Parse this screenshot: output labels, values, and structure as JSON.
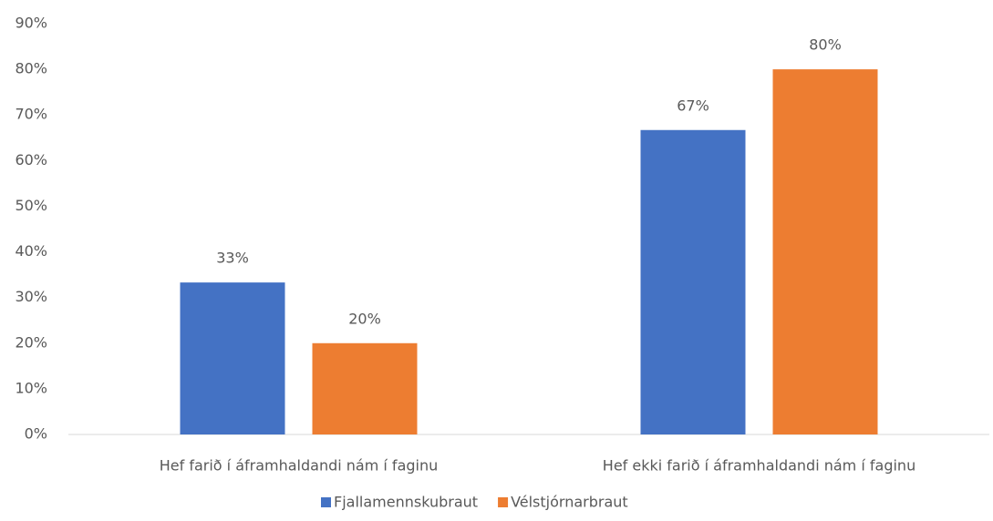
{
  "chart_data": {
    "type": "bar",
    "categories": [
      "Hef farið í áframhaldandi nám í faginu",
      "Hef ekki farið í áframhaldandi nám í faginu"
    ],
    "series": [
      {
        "name": "Fjallamennskubraut",
        "color": "#4472c4",
        "values": [
          33.3,
          66.7
        ],
        "value_labels": [
          "33%",
          "67%"
        ]
      },
      {
        "name": "Vélstjórnarbraut",
        "color": "#ed7d31",
        "values": [
          20,
          80
        ],
        "value_labels": [
          "20%",
          "80%"
        ]
      }
    ],
    "ylim": [
      0,
      90
    ],
    "yticks": [
      {
        "value": 0,
        "label": "0%"
      },
      {
        "value": 10,
        "label": "10%"
      },
      {
        "value": 20,
        "label": "20%"
      },
      {
        "value": 30,
        "label": "30%"
      },
      {
        "value": 40,
        "label": "40%"
      },
      {
        "value": 50,
        "label": "50%"
      },
      {
        "value": 60,
        "label": "60%"
      },
      {
        "value": 70,
        "label": "70%"
      },
      {
        "value": 80,
        "label": "80%"
      },
      {
        "value": 90,
        "label": "90%"
      }
    ],
    "grid": false,
    "legend": "bottom"
  }
}
